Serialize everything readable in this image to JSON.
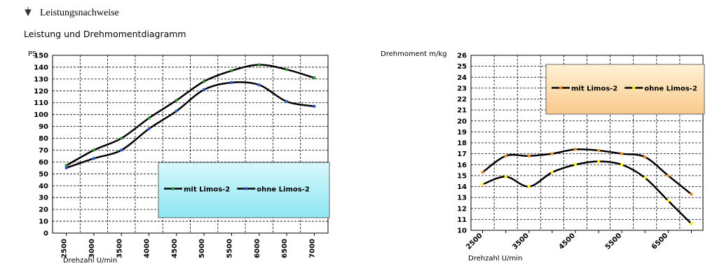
{
  "heading": "Leistungsnachweise",
  "subheading": "Leistung und Drehmomentdiagramm",
  "chart_data": [
    {
      "type": "line",
      "ylabel": "PS",
      "xlabel": "Drehzahl U/min",
      "categories": [
        "2500",
        "3000",
        "3500",
        "4000",
        "4500",
        "5000",
        "5500",
        "6000",
        "6500",
        "7000"
      ],
      "series": [
        {
          "name": "mit Limos-2",
          "color": "#2e8b2e",
          "values": [
            57,
            70,
            80,
            97,
            112,
            128,
            137,
            142,
            138,
            131
          ]
        },
        {
          "name": "ohne Limos-2",
          "color": "#3355cc",
          "values": [
            55,
            63,
            70,
            88,
            103,
            121,
            127,
            125,
            111,
            107
          ]
        }
      ],
      "line_color": "#000000",
      "ylim": [
        0,
        150
      ],
      "yticks": [
        0,
        10,
        20,
        30,
        40,
        50,
        60,
        70,
        80,
        90,
        100,
        110,
        120,
        130,
        140,
        150
      ],
      "grid": true,
      "legend_position": "lower right",
      "legend_colors": [
        "#d8f8fc",
        "#8ce6f2"
      ],
      "x_label_rotation": -90
    },
    {
      "type": "line",
      "ylabel": "Drehmoment m/kg",
      "xlabel": "Drehzahl U/min",
      "categories": [
        "2500",
        null,
        "3500",
        null,
        "4500",
        null,
        "5500",
        null,
        "6500",
        null
      ],
      "series": [
        {
          "name": "mit Limos-2",
          "color": "#f08c1e",
          "values": [
            15.3,
            16.8,
            16.8,
            17.0,
            17.4,
            17.3,
            17.0,
            16.7,
            15.0,
            13.3
          ]
        },
        {
          "name": "ohne Limos-2",
          "color": "#ffee00",
          "values": [
            14.2,
            14.9,
            14.0,
            15.3,
            16.0,
            16.3,
            16.0,
            14.8,
            12.7,
            10.6
          ]
        }
      ],
      "line_color": "#000000",
      "ylim": [
        10,
        26
      ],
      "yticks": [
        10,
        11,
        12,
        13,
        14,
        15,
        16,
        17,
        18,
        19,
        20,
        21,
        22,
        23,
        24,
        25,
        26
      ],
      "grid": true,
      "legend_position": "upper right",
      "legend_colors": [
        "#fff2d6",
        "#f8c98a"
      ],
      "x_label_rotation": -45
    }
  ]
}
